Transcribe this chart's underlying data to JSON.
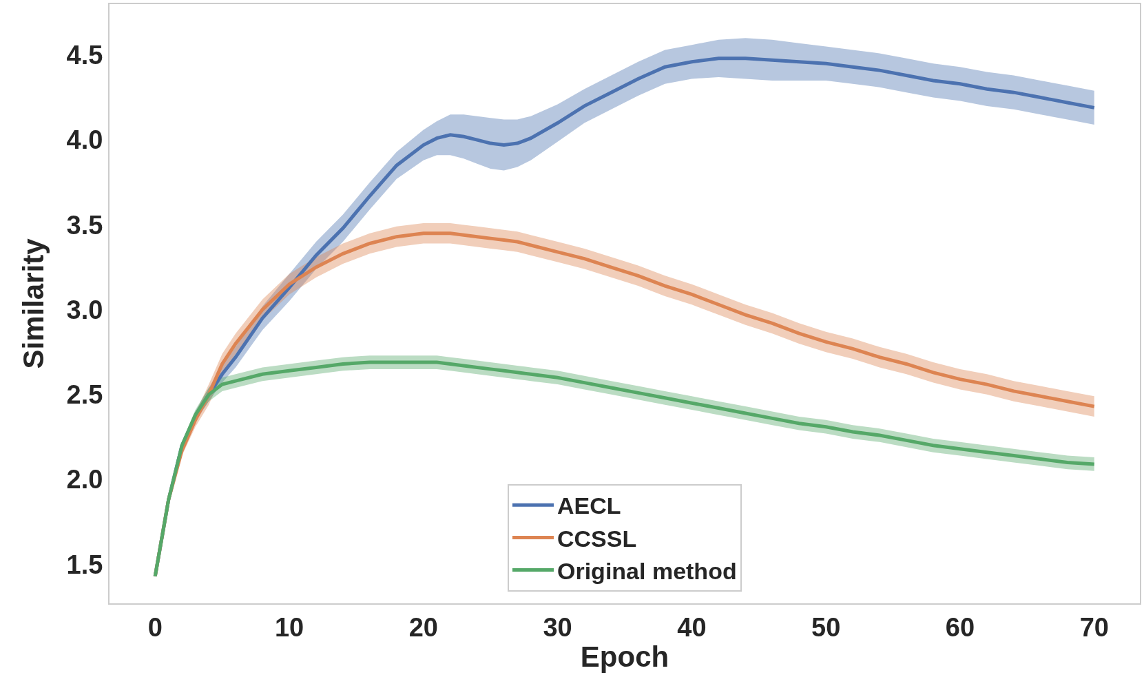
{
  "chart_data": {
    "type": "line",
    "xlabel": "Epoch",
    "ylabel": "Similarity",
    "x": [
      0,
      1,
      2,
      3,
      4,
      5,
      6,
      8,
      10,
      12,
      14,
      16,
      18,
      20,
      21,
      22,
      23,
      24,
      25,
      26,
      27,
      28,
      30,
      32,
      34,
      36,
      38,
      40,
      42,
      44,
      46,
      48,
      50,
      52,
      54,
      56,
      58,
      60,
      62,
      64,
      66,
      68,
      70
    ],
    "series": [
      {
        "name": "AECL",
        "color": "#4c72b0",
        "values": [
          1.43,
          1.88,
          2.2,
          2.37,
          2.5,
          2.62,
          2.72,
          2.95,
          3.13,
          3.32,
          3.48,
          3.67,
          3.85,
          3.97,
          4.01,
          4.03,
          4.02,
          4.0,
          3.98,
          3.97,
          3.98,
          4.01,
          4.1,
          4.2,
          4.28,
          4.36,
          4.43,
          4.46,
          4.48,
          4.48,
          4.47,
          4.46,
          4.45,
          4.43,
          4.41,
          4.38,
          4.35,
          4.33,
          4.3,
          4.28,
          4.25,
          4.22,
          4.19
        ],
        "lower": [
          1.43,
          1.87,
          2.18,
          2.34,
          2.46,
          2.57,
          2.66,
          2.88,
          3.05,
          3.24,
          3.4,
          3.59,
          3.77,
          3.88,
          3.91,
          3.91,
          3.89,
          3.86,
          3.83,
          3.82,
          3.84,
          3.88,
          3.99,
          4.1,
          4.18,
          4.26,
          4.33,
          4.36,
          4.37,
          4.36,
          4.35,
          4.35,
          4.35,
          4.33,
          4.31,
          4.28,
          4.25,
          4.23,
          4.2,
          4.18,
          4.15,
          4.12,
          4.09
        ],
        "upper": [
          1.43,
          1.89,
          2.22,
          2.4,
          2.54,
          2.67,
          2.78,
          3.02,
          3.21,
          3.4,
          3.56,
          3.75,
          3.93,
          4.06,
          4.11,
          4.15,
          4.15,
          4.14,
          4.13,
          4.12,
          4.12,
          4.14,
          4.21,
          4.3,
          4.38,
          4.46,
          4.53,
          4.56,
          4.59,
          4.6,
          4.59,
          4.57,
          4.55,
          4.53,
          4.51,
          4.48,
          4.45,
          4.43,
          4.4,
          4.38,
          4.35,
          4.32,
          4.29
        ]
      },
      {
        "name": "CCSSL",
        "color": "#dd8452",
        "values": [
          1.43,
          1.88,
          2.17,
          2.35,
          2.5,
          2.68,
          2.8,
          3.0,
          3.15,
          3.25,
          3.33,
          3.39,
          3.43,
          3.45,
          3.45,
          3.45,
          3.44,
          3.43,
          3.42,
          3.41,
          3.4,
          3.38,
          3.34,
          3.3,
          3.25,
          3.2,
          3.14,
          3.09,
          3.03,
          2.97,
          2.92,
          2.86,
          2.81,
          2.77,
          2.72,
          2.68,
          2.63,
          2.59,
          2.56,
          2.52,
          2.49,
          2.46,
          2.43
        ],
        "lower": [
          1.43,
          1.86,
          2.14,
          2.31,
          2.44,
          2.62,
          2.74,
          2.94,
          3.09,
          3.19,
          3.27,
          3.33,
          3.37,
          3.39,
          3.39,
          3.39,
          3.38,
          3.37,
          3.36,
          3.35,
          3.34,
          3.32,
          3.28,
          3.24,
          3.19,
          3.14,
          3.08,
          3.03,
          2.97,
          2.91,
          2.86,
          2.8,
          2.75,
          2.71,
          2.66,
          2.62,
          2.57,
          2.53,
          2.5,
          2.46,
          2.43,
          2.4,
          2.37
        ],
        "upper": [
          1.43,
          1.9,
          2.2,
          2.39,
          2.56,
          2.74,
          2.86,
          3.06,
          3.21,
          3.31,
          3.39,
          3.45,
          3.49,
          3.51,
          3.51,
          3.51,
          3.5,
          3.49,
          3.48,
          3.47,
          3.46,
          3.44,
          3.4,
          3.36,
          3.31,
          3.26,
          3.2,
          3.15,
          3.09,
          3.03,
          2.98,
          2.92,
          2.87,
          2.83,
          2.78,
          2.74,
          2.69,
          2.65,
          2.62,
          2.58,
          2.55,
          2.52,
          2.49
        ]
      },
      {
        "name": "Original method",
        "color": "#55a868",
        "values": [
          1.43,
          1.88,
          2.2,
          2.38,
          2.5,
          2.56,
          2.58,
          2.62,
          2.64,
          2.66,
          2.68,
          2.69,
          2.69,
          2.69,
          2.69,
          2.68,
          2.67,
          2.66,
          2.65,
          2.64,
          2.63,
          2.62,
          2.6,
          2.57,
          2.54,
          2.51,
          2.48,
          2.45,
          2.42,
          2.39,
          2.36,
          2.33,
          2.31,
          2.28,
          2.26,
          2.23,
          2.2,
          2.18,
          2.16,
          2.14,
          2.12,
          2.1,
          2.09
        ],
        "lower": [
          1.43,
          1.87,
          2.18,
          2.35,
          2.46,
          2.52,
          2.54,
          2.58,
          2.6,
          2.62,
          2.64,
          2.65,
          2.65,
          2.65,
          2.65,
          2.64,
          2.63,
          2.62,
          2.61,
          2.6,
          2.59,
          2.58,
          2.56,
          2.53,
          2.5,
          2.47,
          2.44,
          2.41,
          2.38,
          2.35,
          2.32,
          2.29,
          2.27,
          2.24,
          2.22,
          2.19,
          2.16,
          2.14,
          2.12,
          2.1,
          2.08,
          2.06,
          2.05
        ],
        "upper": [
          1.43,
          1.89,
          2.22,
          2.41,
          2.54,
          2.6,
          2.62,
          2.66,
          2.68,
          2.7,
          2.72,
          2.73,
          2.73,
          2.73,
          2.73,
          2.72,
          2.71,
          2.7,
          2.69,
          2.68,
          2.67,
          2.66,
          2.64,
          2.61,
          2.58,
          2.55,
          2.52,
          2.49,
          2.46,
          2.43,
          2.4,
          2.37,
          2.35,
          2.32,
          2.3,
          2.27,
          2.24,
          2.22,
          2.2,
          2.18,
          2.16,
          2.14,
          2.13
        ]
      }
    ],
    "xlim": [
      -3.4,
      73.4
    ],
    "ylim": [
      1.27,
      4.8
    ],
    "xticks": [
      0,
      10,
      20,
      30,
      40,
      50,
      60,
      70
    ],
    "yticks": [
      {
        "value": 1.5,
        "label": "1.5"
      },
      {
        "value": 2,
        "label": "2.0"
      },
      {
        "value": 2.5,
        "label": "2.5"
      },
      {
        "value": 3,
        "label": "3.0"
      },
      {
        "value": 3.5,
        "label": "3.5"
      },
      {
        "value": 4,
        "label": "4.0"
      },
      {
        "value": 4.5,
        "label": "4.5"
      }
    ],
    "legend": "bottom",
    "marker": "none",
    "line_style": "solid"
  }
}
